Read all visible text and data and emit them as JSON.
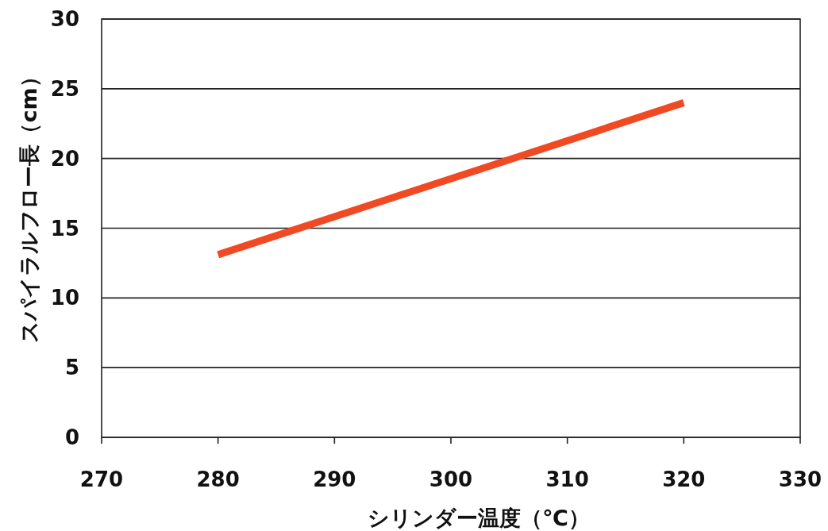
{
  "chart_data": {
    "type": "line",
    "xlabel": "シリンダー温度（℃）",
    "ylabel": "スパイラルフロー長（cm）",
    "x": [
      280,
      320
    ],
    "series": [
      {
        "color": "#f04a24",
        "values": [
          13.1,
          24.0
        ]
      }
    ],
    "xlim": [
      270,
      330
    ],
    "xticks": [
      270,
      280,
      290,
      300,
      310,
      320,
      330
    ],
    "ylim": [
      0,
      30
    ],
    "yticks": [
      0,
      5,
      10,
      15,
      20,
      25,
      30
    ],
    "grid": "y",
    "marker": "none",
    "line_style": "solid"
  }
}
